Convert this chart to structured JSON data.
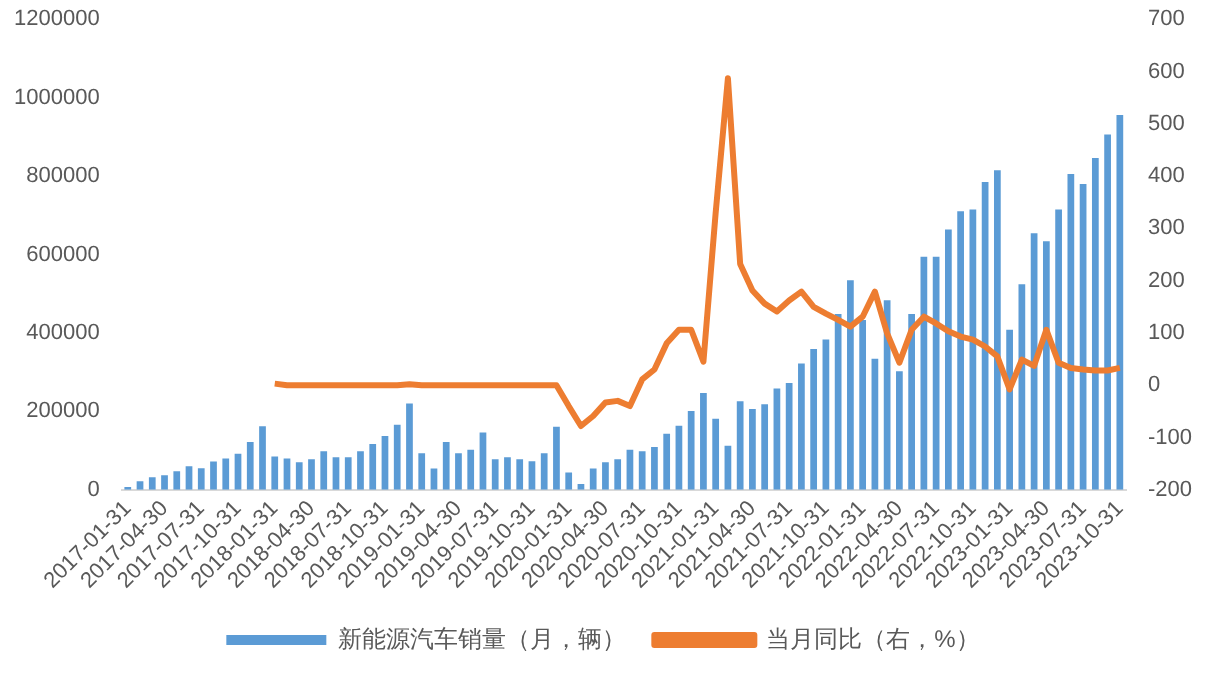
{
  "chart_data": {
    "type": "bar",
    "categories": [
      "2017-01-31",
      null,
      null,
      "2017-04-30",
      null,
      null,
      "2017-07-31",
      null,
      null,
      "2017-10-31",
      null,
      null,
      "2018-01-31",
      null,
      null,
      "2018-04-30",
      null,
      null,
      "2018-07-31",
      null,
      null,
      "2018-10-31",
      null,
      null,
      "2019-01-31",
      null,
      null,
      "2019-04-30",
      null,
      null,
      "2019-07-31",
      null,
      null,
      "2019-10-31",
      null,
      null,
      "2020-01-31",
      null,
      null,
      "2020-04-30",
      null,
      null,
      "2020-07-31",
      null,
      null,
      "2020-10-31",
      null,
      null,
      "2021-01-31",
      null,
      null,
      "2021-04-30",
      null,
      null,
      "2021-07-31",
      null,
      null,
      "2021-10-31",
      null,
      null,
      "2022-01-31",
      null,
      null,
      "2022-04-30",
      null,
      null,
      "2022-07-31",
      null,
      null,
      "2022-10-31",
      null,
      null,
      "2023-01-31",
      null,
      null,
      "2023-04-30",
      null,
      null,
      "2023-07-31",
      null,
      null,
      "2023-10-31"
    ],
    "series": [
      {
        "name": "新能源汽车销量（月，辆）",
        "color": "#5b9bd5",
        "values": [
          7000,
          22000,
          32000,
          37000,
          47000,
          60000,
          55000,
          72000,
          80000,
          92000,
          122000,
          162000,
          85000,
          80000,
          70000,
          78000,
          98000,
          83000,
          83000,
          98000,
          117000,
          137000,
          166000,
          220000,
          93000,
          54000,
          122000,
          93000,
          102000,
          146000,
          78000,
          83000,
          78000,
          73000,
          93000,
          161000,
          44000,
          15000,
          54000,
          70000,
          78000,
          102000,
          98000,
          109000,
          143000,
          163000,
          201000,
          247000,
          181000,
          112000,
          226000,
          206000,
          218000,
          258000,
          272000,
          322000,
          359000,
          383000,
          448000,
          534000,
          433000,
          334000,
          483000,
          302000,
          448000,
          594000,
          594000,
          664000,
          710000,
          715000,
          785000,
          815000,
          408000,
          524000,
          654000,
          634000,
          715000,
          805000,
          780000,
          846000,
          906000,
          956000
        ]
      },
      {
        "name": "当月同比（右，%）",
        "type": "line",
        "axis": "y2",
        "color": "#ed7d31",
        "values": [
          null,
          null,
          null,
          null,
          null,
          null,
          null,
          null,
          null,
          null,
          null,
          null,
          3,
          0,
          0,
          0,
          0,
          0,
          0,
          0,
          0,
          0,
          0,
          2,
          0,
          0,
          0,
          0,
          0,
          0,
          0,
          0,
          0,
          0,
          0,
          0,
          -40,
          -78,
          -59,
          -33,
          -30,
          -40,
          11,
          30,
          80,
          106,
          106,
          45,
          330,
          587,
          232,
          181,
          156,
          141,
          162,
          179,
          150,
          137,
          125,
          112,
          131,
          179,
          99,
          43,
          106,
          131,
          118,
          103,
          93,
          87,
          74,
          55,
          -8,
          49,
          37,
          106,
          43,
          33,
          30,
          28,
          28,
          33
        ]
      }
    ],
    "ylim": [
      0,
      1200000
    ],
    "yticks": [
      0,
      200000,
      400000,
      600000,
      800000,
      1000000,
      1200000
    ],
    "y2lim": [
      -200,
      700
    ],
    "y2ticks": [
      -200,
      -100,
      0,
      100,
      200,
      300,
      400,
      500,
      600,
      700
    ],
    "grid": false,
    "legend": "bottom",
    "marker": "none"
  }
}
